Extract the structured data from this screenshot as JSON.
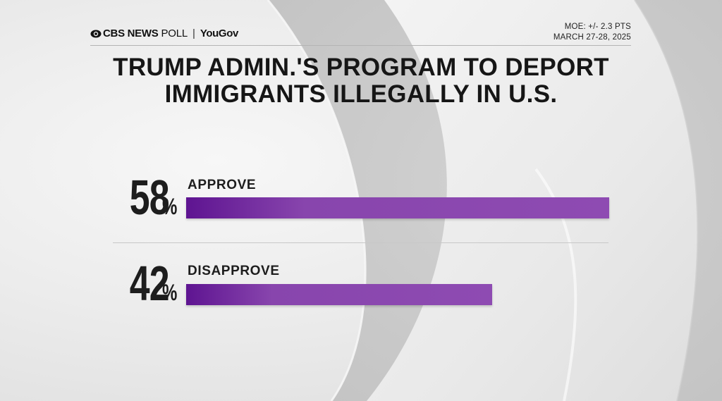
{
  "header": {
    "brand_cbs": "CBS NEWS",
    "brand_poll": "POLL",
    "brand_separator": "|",
    "brand_partner": "YouGov",
    "moe": "MOE: +/- 2.3 PTS",
    "date": "MARCH 27-28, 2025"
  },
  "colors": {
    "bar_start": "#5e1491",
    "bar_end": "#8e4bb2",
    "text": "#1d1d1d"
  },
  "chart_data": {
    "type": "bar",
    "orientation": "horizontal",
    "title": "TRUMP ADMIN.'S PROGRAM TO DEPORT IMMIGRANTS ILLEGALLY IN U.S.",
    "title_lines": [
      "TRUMP ADMIN.'S PROGRAM TO DEPORT",
      "IMMIGRANTS ILLEGALLY IN U.S."
    ],
    "categories": [
      "APPROVE",
      "DISAPPROVE"
    ],
    "values": [
      58,
      42
    ],
    "value_labels": [
      "58",
      "42"
    ],
    "unit": "%",
    "xlim": [
      0,
      58
    ],
    "grid": false,
    "legend": "none"
  }
}
